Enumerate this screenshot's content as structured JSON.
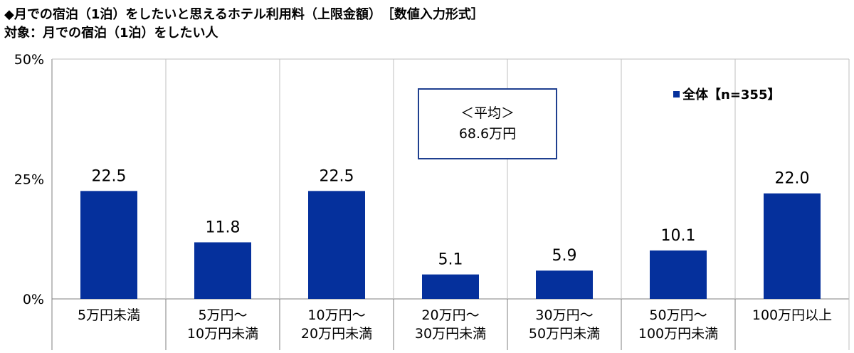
{
  "header": {
    "title": "◆月での宿泊（1泊）をしたいと思えるホテル利用料（上限金額）　［数値入力形式］",
    "subtitle": "対象：月での宿泊（1泊）をしたい人"
  },
  "note": {
    "line1": "＜平均＞",
    "line2": "68.6万円"
  },
  "legend": {
    "label": "全体【n=355】"
  },
  "colors": {
    "bar": "#05309c",
    "note_border": "#1f3f8f",
    "grid": "#bfbfbf",
    "axis": "#7f7f7f"
  },
  "chart_data": {
    "type": "bar",
    "categories": [
      [
        "5万円未満"
      ],
      [
        "5万円～",
        "10万円未満"
      ],
      [
        "10万円～",
        "20万円未満"
      ],
      [
        "20万円～",
        "30万円未満"
      ],
      [
        "30万円～",
        "50万円未満"
      ],
      [
        "50万円～",
        "100万円未満"
      ],
      [
        "100万円以上"
      ]
    ],
    "series": [
      {
        "name": "全体【n=355】",
        "values": [
          22.5,
          11.8,
          22.5,
          5.1,
          5.9,
          10.1,
          22.0
        ]
      }
    ],
    "data_labels": [
      "22.5",
      "11.8",
      "22.5",
      "5.1",
      "5.9",
      "10.1",
      "22.0"
    ],
    "yticks": [
      "0%",
      "25%",
      "50%"
    ],
    "ylim": [
      0,
      50
    ],
    "grid": "vertical separators between categories",
    "legend_position": "top-right"
  }
}
